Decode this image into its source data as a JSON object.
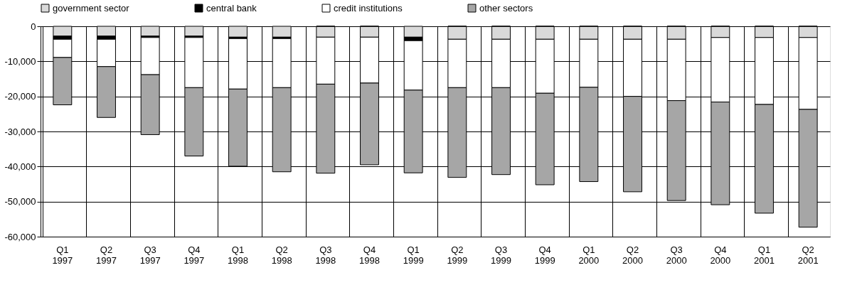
{
  "chart_data": {
    "type": "bar",
    "stacked": true,
    "categories": [
      "Q1 1997",
      "Q2 1997",
      "Q3 1997",
      "Q4 1997",
      "Q1 1998",
      "Q2 1998",
      "Q3 1998",
      "Q4 1998",
      "Q1 1999",
      "Q2 1999",
      "Q3 1999",
      "Q4 1999",
      "Q1 2000",
      "Q2 2000",
      "Q3 2000",
      "Q4 2000",
      "Q1 2001",
      "Q2 2001"
    ],
    "series": [
      {
        "name": "government sector",
        "color": "#d9d9d9",
        "values": [
          -2800,
          -2800,
          -2800,
          -2800,
          -3100,
          -3100,
          -3100,
          -3100,
          -3100,
          -3700,
          -3700,
          -3700,
          -3700,
          -3700,
          -3700,
          -3200,
          -3200,
          -3200
        ]
      },
      {
        "name": "central bank",
        "color": "#000000",
        "values": [
          -900,
          -900,
          -400,
          -400,
          -400,
          -400,
          0,
          0,
          -1000,
          0,
          0,
          0,
          0,
          0,
          0,
          0,
          0,
          0
        ]
      },
      {
        "name": "credit institutions",
        "color": "#ffffff",
        "values": [
          -5200,
          -7800,
          -10600,
          -14300,
          -14400,
          -14000,
          -13400,
          -13100,
          -14100,
          -13800,
          -13800,
          -15400,
          -13700,
          -16300,
          -17500,
          -18400,
          -19100,
          -20500
        ]
      },
      {
        "name": "other sectors",
        "color": "#a6a6a6",
        "values": [
          -13500,
          -14500,
          -17100,
          -19500,
          -22000,
          -24000,
          -25400,
          -23300,
          -23600,
          -25600,
          -24800,
          -26100,
          -26900,
          -27200,
          -28500,
          -29300,
          -31000,
          -33600
        ]
      }
    ],
    "ylim": [
      -60000,
      0
    ],
    "yticks": [
      {
        "value": -60000,
        "label": "-60,000"
      },
      {
        "value": -50000,
        "label": "-50,000"
      },
      {
        "value": -40000,
        "label": "-40,000"
      },
      {
        "value": -30000,
        "label": "-30,000"
      },
      {
        "value": -20000,
        "label": "-20,000"
      },
      {
        "value": -10000,
        "label": "-10,000"
      },
      0
    ],
    "grid": true,
    "legend": "top"
  }
}
